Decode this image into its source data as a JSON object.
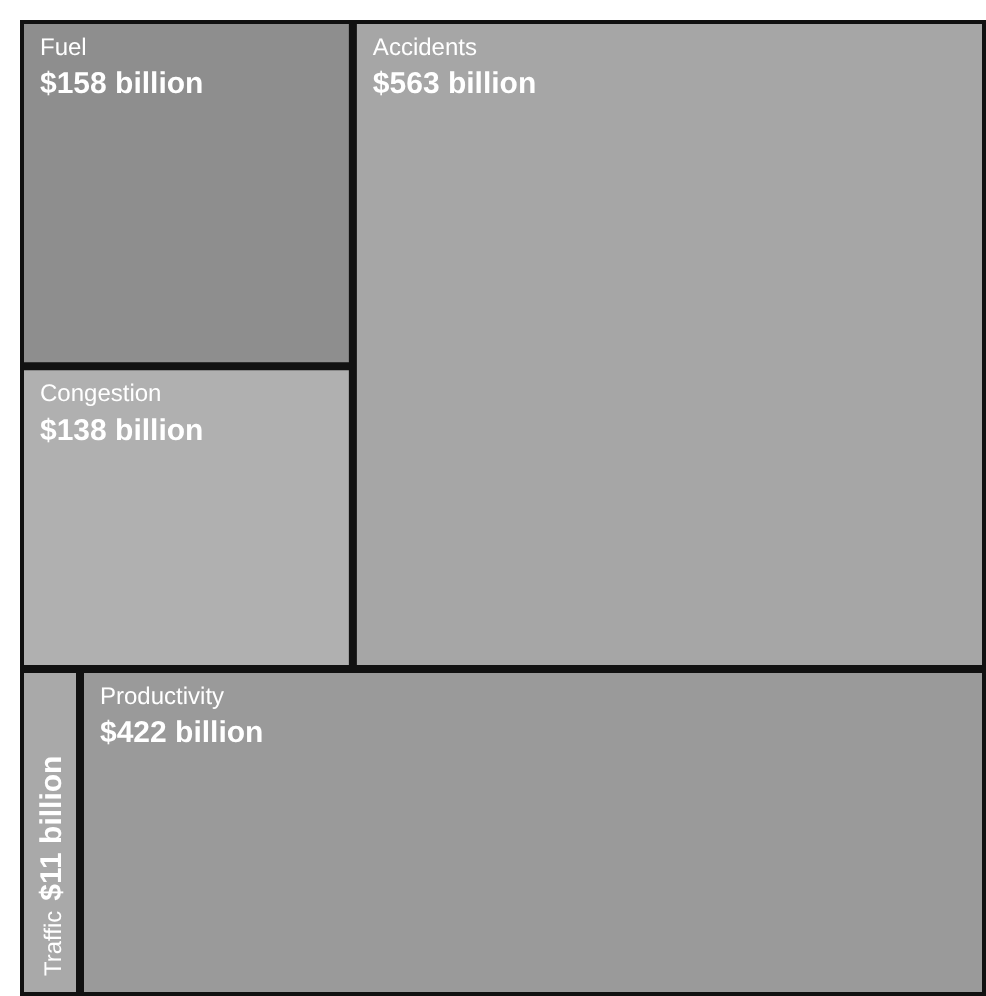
{
  "chart_data": {
    "type": "other",
    "categories": [
      "Fuel",
      "Congestion",
      "Accidents",
      "Traffic",
      "Productivity"
    ],
    "values": [
      158,
      138,
      563,
      11,
      422
    ],
    "value_labels": [
      "$158 billion",
      "$138 billion",
      "$563 billion",
      "$11 billion",
      "$422 billion"
    ],
    "colors": [
      "#8e8e8e",
      "#b0b0b0",
      "#a6a6a6",
      "#a9a9a9",
      "#9a9a9a"
    ]
  }
}
